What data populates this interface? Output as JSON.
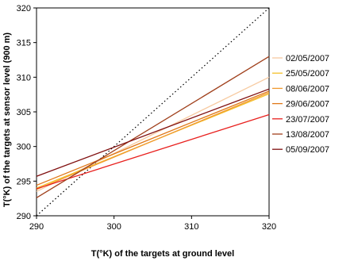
{
  "chart_data": {
    "type": "line",
    "title": "",
    "xlabel": "T(°K) of the targets at ground level",
    "ylabel": "T(°K) of the targets at sensor level (900 m)",
    "xlim": [
      290,
      320
    ],
    "ylim": [
      290,
      320
    ],
    "xticks": [
      "290",
      "300",
      "310",
      "320"
    ],
    "yticks": [
      "290",
      "295",
      "300",
      "305",
      "310",
      "315",
      "320"
    ],
    "grid": false,
    "legend_position": "right",
    "reference_line": {
      "style": "dotted",
      "color": "#000000",
      "x": [
        290,
        320
      ],
      "y": [
        290,
        320
      ]
    },
    "series": [
      {
        "name": "02/05/2007",
        "color": "#f7caa0",
        "x": [
          290,
          320
        ],
        "y": [
          293.5,
          310.0
        ]
      },
      {
        "name": "25/05/2007",
        "color": "#f5c02a",
        "x": [
          290,
          320
        ],
        "y": [
          294.0,
          307.6
        ]
      },
      {
        "name": "08/06/2007",
        "color": "#f09a30",
        "x": [
          290,
          320
        ],
        "y": [
          293.8,
          307.8
        ]
      },
      {
        "name": "29/06/2007",
        "color": "#e07818",
        "x": [
          290,
          320
        ],
        "y": [
          294.4,
          308.0
        ]
      },
      {
        "name": "23/07/2007",
        "color": "#e8201e",
        "x": [
          290,
          320
        ],
        "y": [
          293.9,
          304.6
        ]
      },
      {
        "name": "13/08/2007",
        "color": "#a0401c",
        "x": [
          290,
          320
        ],
        "y": [
          292.6,
          313.0
        ]
      },
      {
        "name": "05/09/2007",
        "color": "#801010",
        "x": [
          290,
          320
        ],
        "y": [
          295.7,
          308.3
        ]
      }
    ]
  }
}
